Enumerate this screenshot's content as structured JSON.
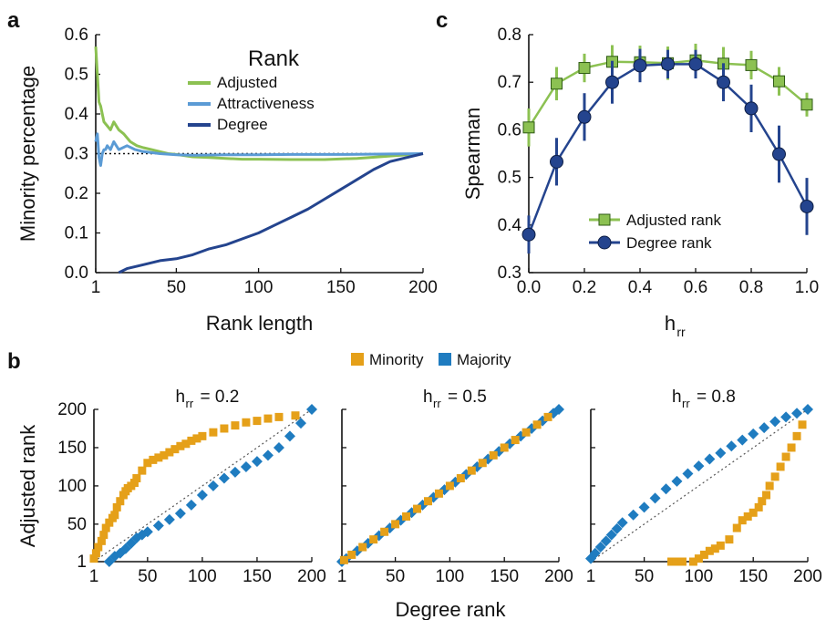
{
  "colors": {
    "adjusted": "#8cc152",
    "attractiveness": "#5b9bd5",
    "degree": "#24448e",
    "minority": "#e5a019",
    "majority": "#1f7cc0",
    "reference": "#333333"
  },
  "chart_data": [
    {
      "panel": "a",
      "type": "line",
      "xlabel": "Rank length",
      "ylabel": "Minority percentage",
      "xlim": [
        1,
        200
      ],
      "ylim": [
        0.0,
        0.6
      ],
      "xticks": [
        "1",
        "50",
        "100",
        "150",
        "200"
      ],
      "yticks": [
        "0.0",
        "0.1",
        "0.2",
        "0.3",
        "0.4",
        "0.5",
        "0.6"
      ],
      "legend_title": "Rank",
      "legend_position": "top-right",
      "reference_line": 0.3,
      "series": [
        {
          "name": "Adjusted",
          "color": "#8cc152",
          "x": [
            1,
            2,
            3,
            4,
            5,
            6,
            8,
            10,
            12,
            15,
            18,
            22,
            26,
            30,
            35,
            40,
            45,
            50,
            60,
            70,
            80,
            90,
            100,
            120,
            140,
            160,
            180,
            200
          ],
          "y": [
            0.57,
            0.5,
            0.43,
            0.42,
            0.4,
            0.38,
            0.37,
            0.36,
            0.38,
            0.36,
            0.35,
            0.33,
            0.32,
            0.315,
            0.31,
            0.305,
            0.3,
            0.298,
            0.292,
            0.29,
            0.288,
            0.286,
            0.286,
            0.285,
            0.285,
            0.288,
            0.294,
            0.3
          ]
        },
        {
          "name": "Attractiveness",
          "color": "#5b9bd5",
          "x": [
            1,
            2,
            3,
            4,
            5,
            6,
            7,
            8,
            10,
            12,
            15,
            20,
            25,
            30,
            40,
            50,
            60,
            80,
            100,
            120,
            150,
            180,
            200
          ],
          "y": [
            0.33,
            0.35,
            0.29,
            0.27,
            0.3,
            0.31,
            0.31,
            0.32,
            0.31,
            0.33,
            0.31,
            0.32,
            0.31,
            0.305,
            0.3,
            0.297,
            0.296,
            0.297,
            0.297,
            0.298,
            0.298,
            0.299,
            0.3
          ]
        },
        {
          "name": "Degree",
          "color": "#24448e",
          "x": [
            15,
            20,
            30,
            40,
            50,
            60,
            70,
            80,
            90,
            100,
            110,
            120,
            130,
            140,
            150,
            160,
            170,
            180,
            190,
            200
          ],
          "y": [
            0.0,
            0.01,
            0.02,
            0.03,
            0.035,
            0.045,
            0.06,
            0.07,
            0.085,
            0.1,
            0.12,
            0.14,
            0.16,
            0.185,
            0.21,
            0.235,
            0.26,
            0.28,
            0.29,
            0.3
          ]
        }
      ]
    },
    {
      "panel": "c",
      "type": "line",
      "xlabel": "h",
      "xlabel_sub": "rr",
      "ylabel": "Spearman",
      "xlim": [
        0.0,
        1.0
      ],
      "ylim": [
        0.3,
        0.8
      ],
      "xticks": [
        "0.0",
        "0.2",
        "0.4",
        "0.6",
        "0.8",
        "1.0"
      ],
      "yticks": [
        "0.3",
        "0.4",
        "0.5",
        "0.6",
        "0.7",
        "0.8"
      ],
      "legend_position": "bottom-center",
      "series": [
        {
          "name": "Adjusted rank",
          "marker": "square",
          "color": "#8cc152",
          "x": [
            0.0,
            0.1,
            0.2,
            0.3,
            0.4,
            0.5,
            0.6,
            0.7,
            0.8,
            0.9,
            1.0
          ],
          "y": [
            0.605,
            0.697,
            0.73,
            0.743,
            0.742,
            0.74,
            0.746,
            0.739,
            0.736,
            0.702,
            0.653
          ],
          "err": [
            0.04,
            0.035,
            0.03,
            0.035,
            0.035,
            0.035,
            0.035,
            0.035,
            0.03,
            0.03,
            0.025
          ]
        },
        {
          "name": "Degree rank",
          "marker": "circle",
          "color": "#24448e",
          "x": [
            0.0,
            0.1,
            0.2,
            0.3,
            0.4,
            0.5,
            0.6,
            0.7,
            0.8,
            0.9,
            1.0
          ],
          "y": [
            0.38,
            0.533,
            0.627,
            0.7,
            0.735,
            0.738,
            0.738,
            0.7,
            0.645,
            0.549,
            0.439
          ],
          "err": [
            0.04,
            0.05,
            0.05,
            0.045,
            0.035,
            0.03,
            0.03,
            0.04,
            0.05,
            0.06,
            0.06
          ]
        }
      ]
    },
    {
      "panel": "b",
      "type": "scatter",
      "legend": [
        {
          "name": "Minority",
          "color": "#e5a019"
        },
        {
          "name": "Majority",
          "color": "#1f7cc0"
        }
      ],
      "legend_position": "top-center",
      "xlabel": "Degree rank",
      "ylabel": "Adjusted rank",
      "xlim": [
        1,
        200
      ],
      "ylim": [
        1,
        200
      ],
      "xticks": [
        "1",
        "50",
        "100",
        "150",
        "200"
      ],
      "yticks": [
        "1",
        "50",
        "100",
        "150",
        "200"
      ],
      "subplots": [
        {
          "title_prefix": "h",
          "title_sub": "rr",
          "title_value": " = 0.2",
          "minority": {
            "x": [
              1,
              3,
              5,
              8,
              10,
              12,
              15,
              18,
              20,
              22,
              25,
              28,
              30,
              32,
              35,
              38,
              40,
              45,
              50,
              55,
              60,
              65,
              70,
              75,
              80,
              85,
              90,
              95,
              100,
              110,
              120,
              130,
              140,
              150,
              160,
              170,
              185
            ],
            "y": [
              5,
              12,
              20,
              28,
              36,
              45,
              52,
              58,
              62,
              72,
              80,
              88,
              93,
              97,
              100,
              104,
              110,
              120,
              130,
              134,
              137,
              140,
              144,
              148,
              152,
              155,
              159,
              162,
              165,
              170,
              175,
              179,
              183,
              185,
              188,
              190,
              192
            ]
          },
          "majority": {
            "x": [
              15,
              20,
              25,
              30,
              35,
              40,
              45,
              50,
              60,
              70,
              80,
              90,
              100,
              110,
              120,
              130,
              140,
              150,
              160,
              170,
              180,
              190,
              200
            ],
            "y": [
              1,
              8,
              12,
              18,
              25,
              32,
              36,
              40,
              48,
              56,
              64,
              75,
              88,
              100,
              110,
              118,
              125,
              132,
              140,
              150,
              165,
              182,
              200
            ]
          }
        },
        {
          "title_prefix": "h",
          "title_sub": "rr",
          "title_value": " = 0.5",
          "minority": {
            "x": [
              3,
              10,
              20,
              30,
              40,
              50,
              60,
              70,
              80,
              90,
              100,
              110,
              120,
              130,
              140,
              150,
              160,
              170,
              180,
              190
            ],
            "y": [
              3,
              10,
              20,
              30,
              40,
              50,
              60,
              70,
              80,
              90,
              100,
              110,
              120,
              130,
              140,
              150,
              160,
              170,
              180,
              190
            ]
          },
          "majority": {
            "x": [
              1,
              5,
              15,
              25,
              35,
              45,
              55,
              65,
              75,
              85,
              95,
              105,
              115,
              125,
              135,
              145,
              155,
              165,
              175,
              185,
              195,
              200
            ],
            "y": [
              1,
              5,
              15,
              25,
              35,
              45,
              55,
              65,
              75,
              85,
              95,
              105,
              115,
              125,
              135,
              145,
              155,
              165,
              175,
              185,
              195,
              200
            ]
          }
        },
        {
          "title_prefix": "h",
          "title_sub": "rr",
          "title_value": " = 0.8",
          "minority": {
            "x": [
              75,
              80,
              85,
              95,
              100,
              105,
              110,
              115,
              120,
              128,
              135,
              140,
              145,
              150,
              155,
              158,
              162,
              165,
              170,
              175,
              180,
              185,
              190,
              195
            ],
            "y": [
              1,
              1,
              1,
              1,
              5,
              10,
              15,
              18,
              22,
              30,
              45,
              55,
              60,
              65,
              72,
              80,
              88,
              100,
              112,
              125,
              138,
              150,
              165,
              180
            ]
          },
          "majority": {
            "x": [
              1,
              5,
              10,
              15,
              20,
              25,
              30,
              40,
              50,
              60,
              70,
              80,
              90,
              100,
              110,
              120,
              130,
              140,
              150,
              160,
              170,
              180,
              190,
              200
            ],
            "y": [
              5,
              12,
              20,
              28,
              36,
              44,
              52,
              62,
              72,
              84,
              96,
              106,
              116,
              126,
              135,
              143,
              152,
              160,
              168,
              176,
              184,
              190,
              195,
              200
            ]
          }
        }
      ]
    }
  ]
}
